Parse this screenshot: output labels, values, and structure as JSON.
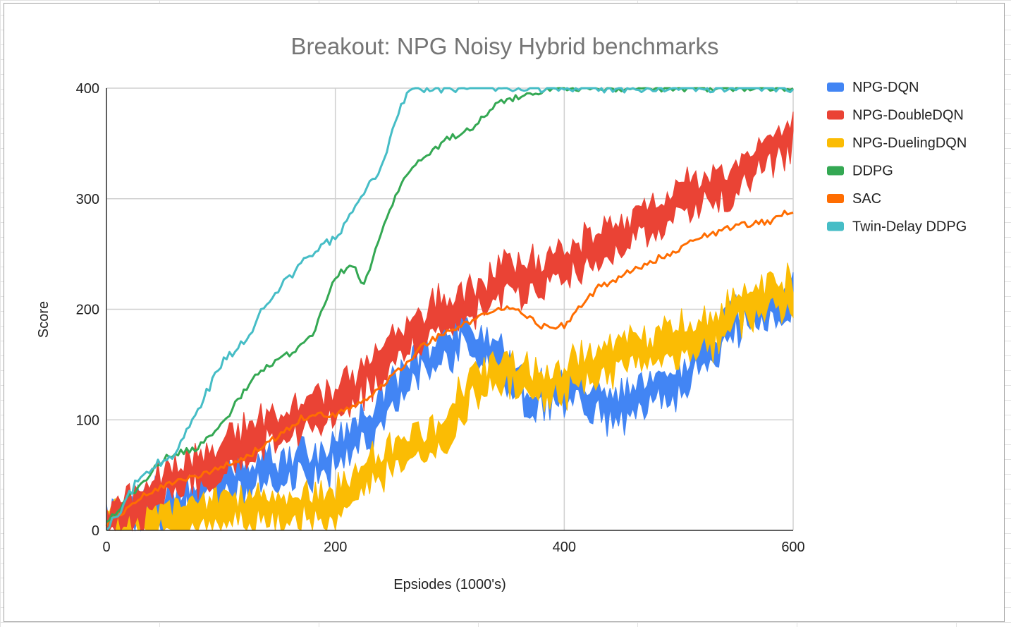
{
  "chart_data": {
    "type": "area",
    "title": "Breakout: NPG Noisy Hybrid benchmarks",
    "xlabel": "Epsiodes (1000's)",
    "ylabel": "Score",
    "xlim": [
      0,
      600
    ],
    "ylim": [
      0,
      400
    ],
    "xticks": [
      "0",
      "200",
      "400",
      "600"
    ],
    "yticks": [
      "0",
      "100",
      "200",
      "300",
      "400"
    ],
    "grid": true,
    "legend_position": "right",
    "series": [
      {
        "name": "NPG-DQN",
        "color": "#4285f4",
        "kind": "band",
        "band_width": 24,
        "noise": 15,
        "x": [
          0,
          30,
          60,
          100,
          150,
          180,
          200,
          230,
          260,
          290,
          310,
          340,
          370,
          390,
          410,
          440,
          470,
          500,
          530,
          560,
          580,
          600
        ],
        "values": [
          5,
          15,
          28,
          42,
          55,
          60,
          68,
          95,
          135,
          165,
          175,
          160,
          115,
          125,
          125,
          110,
          115,
          140,
          165,
          200,
          205,
          210
        ]
      },
      {
        "name": "NPG-DoubleDQN",
        "color": "#ea4335",
        "kind": "band",
        "band_width": 28,
        "noise": 12,
        "x": [
          0,
          30,
          60,
          100,
          130,
          160,
          190,
          210,
          240,
          270,
          300,
          320,
          340,
          360,
          390,
          420,
          450,
          480,
          510,
          540,
          570,
          600
        ],
        "values": [
          8,
          25,
          48,
          65,
          85,
          100,
          110,
          120,
          155,
          180,
          200,
          205,
          225,
          228,
          235,
          250,
          270,
          285,
          300,
          310,
          335,
          360
        ]
      },
      {
        "name": "NPG-DuelingDQN",
        "color": "#fbbc04",
        "kind": "band",
        "band_width": 26,
        "noise": 12,
        "x": [
          0,
          30,
          60,
          90,
          120,
          150,
          180,
          200,
          220,
          250,
          280,
          300,
          320,
          340,
          360,
          380,
          400,
          420,
          440,
          460,
          480,
          500,
          530,
          560,
          580,
          600
        ],
        "values": [
          3,
          8,
          15,
          18,
          20,
          20,
          22,
          22,
          50,
          65,
          78,
          100,
          130,
          145,
          140,
          130,
          135,
          148,
          150,
          162,
          165,
          170,
          180,
          205,
          210,
          215
        ]
      },
      {
        "name": "DDPG",
        "color": "#34a853",
        "kind": "line",
        "noise": 3,
        "x": [
          0,
          20,
          50,
          80,
          100,
          130,
          160,
          180,
          200,
          215,
          225,
          235,
          260,
          280,
          300,
          320,
          340,
          360,
          380,
          400,
          600
        ],
        "values": [
          8,
          30,
          65,
          75,
          95,
          140,
          160,
          175,
          230,
          240,
          222,
          255,
          320,
          340,
          355,
          365,
          385,
          392,
          398,
          400,
          400
        ]
      },
      {
        "name": "SAC",
        "color": "#ff6d01",
        "kind": "line",
        "noise": 3,
        "x": [
          0,
          30,
          60,
          90,
          120,
          150,
          170,
          200,
          230,
          260,
          280,
          300,
          320,
          340,
          360,
          380,
          400,
          430,
          460,
          490,
          520,
          550,
          580,
          600
        ],
        "values": [
          5,
          30,
          45,
          52,
          65,
          85,
          102,
          105,
          120,
          150,
          170,
          180,
          190,
          200,
          200,
          185,
          185,
          220,
          235,
          250,
          265,
          275,
          280,
          290
        ]
      },
      {
        "name": "Twin-Delay DDPG",
        "color": "#46bdc6",
        "kind": "line",
        "noise": 4,
        "x": [
          0,
          10,
          30,
          60,
          80,
          100,
          120,
          140,
          160,
          180,
          200,
          220,
          240,
          260,
          270,
          280,
          600
        ],
        "values": [
          0,
          15,
          50,
          70,
          110,
          150,
          170,
          205,
          230,
          250,
          265,
          295,
          330,
          390,
          400,
          400,
          400
        ]
      }
    ]
  }
}
